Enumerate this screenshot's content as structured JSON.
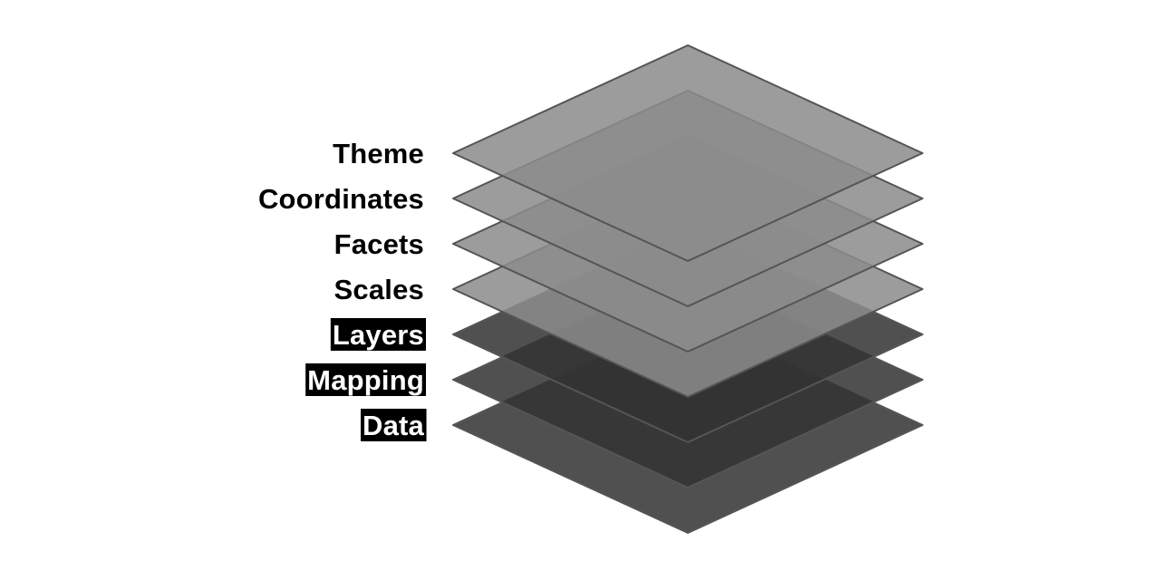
{
  "layers": [
    {
      "label": "Data",
      "highlighted": true,
      "fill": "#333333"
    },
    {
      "label": "Mapping",
      "highlighted": true,
      "fill": "#333333"
    },
    {
      "label": "Layers",
      "highlighted": true,
      "fill": "#333333"
    },
    {
      "label": "Scales",
      "highlighted": false,
      "fill": "#8c8c8c"
    },
    {
      "label": "Facets",
      "highlighted": false,
      "fill": "#8c8c8c"
    },
    {
      "label": "Coordinates",
      "highlighted": false,
      "fill": "#8c8c8c"
    },
    {
      "label": "Theme",
      "highlighted": false,
      "fill": "#8c8c8c"
    }
  ],
  "colors": {
    "text": "#000000",
    "highlight_text": "#ffffff",
    "highlight_background": "#000000",
    "outline": "#555555"
  }
}
